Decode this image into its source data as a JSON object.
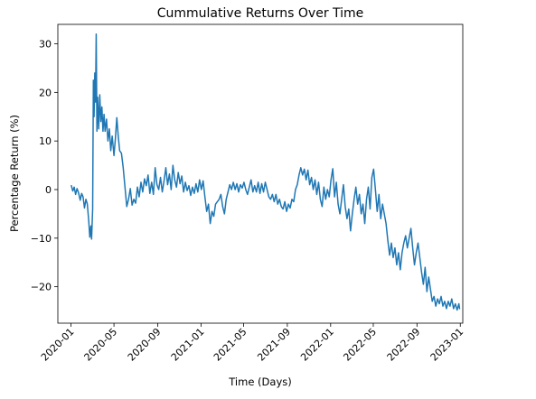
{
  "chart_data": {
    "type": "line",
    "title": "Cummulative Returns Over Time",
    "xlabel": "Time (Days)",
    "ylabel": "Percentage Return (%)",
    "xlim": [
      "2019-11-25",
      "2023-01-08"
    ],
    "ylim": [
      -27.5,
      34
    ],
    "xticks": [
      {
        "value": "2020-01-01",
        "label": "2020-01"
      },
      {
        "value": "2020-05-01",
        "label": "2020-05"
      },
      {
        "value": "2020-09-01",
        "label": "2020-09"
      },
      {
        "value": "2021-01-01",
        "label": "2021-01"
      },
      {
        "value": "2021-05-01",
        "label": "2021-05"
      },
      {
        "value": "2021-09-01",
        "label": "2021-09"
      },
      {
        "value": "2022-01-01",
        "label": "2022-01"
      },
      {
        "value": "2022-05-01",
        "label": "2022-05"
      },
      {
        "value": "2022-09-01",
        "label": "2022-09"
      },
      {
        "value": "2023-01-01",
        "label": "2023-01"
      }
    ],
    "yticks": [
      {
        "value": 30,
        "label": "30"
      },
      {
        "value": 20,
        "label": "20"
      },
      {
        "value": 10,
        "label": "10"
      },
      {
        "value": 0,
        "label": "0"
      },
      {
        "value": -10,
        "label": "−10"
      },
      {
        "value": -20,
        "label": "−20"
      }
    ],
    "grid": false,
    "legend": "none",
    "series": [
      {
        "color": "#1f77b4",
        "points": [
          [
            "2020-01-02",
            0.8
          ],
          [
            "2020-01-06",
            -0.3
          ],
          [
            "2020-01-10",
            0.5
          ],
          [
            "2020-01-14",
            -1.0
          ],
          [
            "2020-01-18",
            0.2
          ],
          [
            "2020-01-22",
            -0.6
          ],
          [
            "2020-01-27",
            -2.2
          ],
          [
            "2020-01-31",
            -0.8
          ],
          [
            "2020-02-04",
            -1.5
          ],
          [
            "2020-02-08",
            -3.8
          ],
          [
            "2020-02-12",
            -2.0
          ],
          [
            "2020-02-16",
            -3.0
          ],
          [
            "2020-02-20",
            -6.5
          ],
          [
            "2020-02-23",
            -9.8
          ],
          [
            "2020-02-26",
            -7.5
          ],
          [
            "2020-02-28",
            -10.2
          ],
          [
            "2020-03-02",
            -4.0
          ],
          [
            "2020-03-04",
            22.5
          ],
          [
            "2020-03-06",
            15.0
          ],
          [
            "2020-03-08",
            24.0
          ],
          [
            "2020-03-10",
            18.0
          ],
          [
            "2020-03-12",
            32.0
          ],
          [
            "2020-03-14",
            12.0
          ],
          [
            "2020-03-16",
            19.0
          ],
          [
            "2020-03-19",
            12.5
          ],
          [
            "2020-03-22",
            19.5
          ],
          [
            "2020-03-25",
            14.0
          ],
          [
            "2020-03-28",
            17.0
          ],
          [
            "2020-03-31",
            12.0
          ],
          [
            "2020-04-03",
            15.5
          ],
          [
            "2020-04-06",
            12.0
          ],
          [
            "2020-04-10",
            14.5
          ],
          [
            "2020-04-14",
            10.0
          ],
          [
            "2020-04-18",
            12.5
          ],
          [
            "2020-04-22",
            8.0
          ],
          [
            "2020-04-26",
            11.0
          ],
          [
            "2020-05-01",
            7.0
          ],
          [
            "2020-05-05",
            10.5
          ],
          [
            "2020-05-09",
            14.8
          ],
          [
            "2020-05-13",
            11.0
          ],
          [
            "2020-05-17",
            8.0
          ],
          [
            "2020-05-22",
            7.5
          ],
          [
            "2020-05-27",
            4.5
          ],
          [
            "2020-06-01",
            0.5
          ],
          [
            "2020-06-06",
            -3.5
          ],
          [
            "2020-06-11",
            -2.0
          ],
          [
            "2020-06-16",
            0.2
          ],
          [
            "2020-06-21",
            -3.2
          ],
          [
            "2020-06-26",
            -2.0
          ],
          [
            "2020-07-01",
            -2.8
          ],
          [
            "2020-07-06",
            0.5
          ],
          [
            "2020-07-11",
            -1.5
          ],
          [
            "2020-07-16",
            1.5
          ],
          [
            "2020-07-21",
            -0.5
          ],
          [
            "2020-07-26",
            2.2
          ],
          [
            "2020-07-31",
            0.8
          ],
          [
            "2020-08-05",
            3.0
          ],
          [
            "2020-08-10",
            -0.8
          ],
          [
            "2020-08-15",
            1.5
          ],
          [
            "2020-08-20",
            -1.0
          ],
          [
            "2020-08-25",
            4.5
          ],
          [
            "2020-08-30",
            1.0
          ],
          [
            "2020-09-04",
            0.0
          ],
          [
            "2020-09-09",
            2.5
          ],
          [
            "2020-09-14",
            -0.5
          ],
          [
            "2020-09-19",
            1.8
          ],
          [
            "2020-09-24",
            4.5
          ],
          [
            "2020-09-29",
            1.0
          ],
          [
            "2020-10-04",
            3.2
          ],
          [
            "2020-10-09",
            0.0
          ],
          [
            "2020-10-14",
            5.0
          ],
          [
            "2020-10-19",
            2.0
          ],
          [
            "2020-10-24",
            0.5
          ],
          [
            "2020-10-29",
            3.5
          ],
          [
            "2020-11-03",
            1.2
          ],
          [
            "2020-11-08",
            2.8
          ],
          [
            "2020-11-13",
            -0.5
          ],
          [
            "2020-11-18",
            1.5
          ],
          [
            "2020-11-23",
            -0.2
          ],
          [
            "2020-11-28",
            0.8
          ],
          [
            "2020-12-03",
            -1.2
          ],
          [
            "2020-12-08",
            0.5
          ],
          [
            "2020-12-13",
            -0.8
          ],
          [
            "2020-12-18",
            1.2
          ],
          [
            "2020-12-23",
            -0.5
          ],
          [
            "2020-12-28",
            2.0
          ],
          [
            "2021-01-02",
            0.0
          ],
          [
            "2021-01-07",
            1.8
          ],
          [
            "2021-01-12",
            -1.5
          ],
          [
            "2021-01-17",
            -4.5
          ],
          [
            "2021-01-22",
            -3.0
          ],
          [
            "2021-01-27",
            -7.0
          ],
          [
            "2021-02-01",
            -4.5
          ],
          [
            "2021-02-06",
            -5.5
          ],
          [
            "2021-02-11",
            -3.0
          ],
          [
            "2021-02-16",
            -2.5
          ],
          [
            "2021-02-21",
            -2.0
          ],
          [
            "2021-02-26",
            -1.0
          ],
          [
            "2021-03-03",
            -3.5
          ],
          [
            "2021-03-08",
            -5.0
          ],
          [
            "2021-03-13",
            -2.0
          ],
          [
            "2021-03-18",
            -0.5
          ],
          [
            "2021-03-23",
            1.0
          ],
          [
            "2021-03-28",
            0.0
          ],
          [
            "2021-04-02",
            1.5
          ],
          [
            "2021-04-07",
            0.0
          ],
          [
            "2021-04-12",
            1.2
          ],
          [
            "2021-04-17",
            -0.5
          ],
          [
            "2021-04-22",
            1.0
          ],
          [
            "2021-04-27",
            0.3
          ],
          [
            "2021-05-02",
            1.5
          ],
          [
            "2021-05-07",
            0.0
          ],
          [
            "2021-05-12",
            -1.0
          ],
          [
            "2021-05-17",
            0.5
          ],
          [
            "2021-05-22",
            2.0
          ],
          [
            "2021-05-27",
            -0.5
          ],
          [
            "2021-06-01",
            0.8
          ],
          [
            "2021-06-06",
            -0.5
          ],
          [
            "2021-06-11",
            1.5
          ],
          [
            "2021-06-16",
            -0.8
          ],
          [
            "2021-06-21",
            1.2
          ],
          [
            "2021-06-26",
            -0.5
          ],
          [
            "2021-07-01",
            1.5
          ],
          [
            "2021-07-06",
            0.0
          ],
          [
            "2021-07-11",
            -1.5
          ],
          [
            "2021-07-16",
            -2.0
          ],
          [
            "2021-07-21",
            -1.0
          ],
          [
            "2021-07-26",
            -2.5
          ],
          [
            "2021-07-31",
            -1.0
          ],
          [
            "2021-08-05",
            -3.0
          ],
          [
            "2021-08-10",
            -2.0
          ],
          [
            "2021-08-15",
            -3.5
          ],
          [
            "2021-08-20",
            -4.0
          ],
          [
            "2021-08-25",
            -2.5
          ],
          [
            "2021-08-30",
            -4.5
          ],
          [
            "2021-09-04",
            -3.0
          ],
          [
            "2021-09-09",
            -3.8
          ],
          [
            "2021-09-14",
            -2.0
          ],
          [
            "2021-09-19",
            -2.5
          ],
          [
            "2021-09-24",
            0.0
          ],
          [
            "2021-09-29",
            1.0
          ],
          [
            "2021-10-04",
            3.0
          ],
          [
            "2021-10-09",
            4.5
          ],
          [
            "2021-10-14",
            3.0
          ],
          [
            "2021-10-19",
            4.2
          ],
          [
            "2021-10-24",
            2.0
          ],
          [
            "2021-10-29",
            4.0
          ],
          [
            "2021-11-03",
            1.0
          ],
          [
            "2021-11-08",
            2.5
          ],
          [
            "2021-11-13",
            0.0
          ],
          [
            "2021-11-18",
            2.0
          ],
          [
            "2021-11-23",
            -1.0
          ],
          [
            "2021-11-28",
            1.5
          ],
          [
            "2021-12-03",
            -2.0
          ],
          [
            "2021-12-08",
            -3.5
          ],
          [
            "2021-12-13",
            0.5
          ],
          [
            "2021-12-18",
            -2.0
          ],
          [
            "2021-12-23",
            0.0
          ],
          [
            "2021-12-28",
            -1.5
          ],
          [
            "2022-01-02",
            2.0
          ],
          [
            "2022-01-07",
            4.3
          ],
          [
            "2022-01-12",
            -1.5
          ],
          [
            "2022-01-17",
            1.5
          ],
          [
            "2022-01-22",
            -3.0
          ],
          [
            "2022-01-27",
            -5.0
          ],
          [
            "2022-02-01",
            -2.0
          ],
          [
            "2022-02-06",
            1.0
          ],
          [
            "2022-02-11",
            -3.5
          ],
          [
            "2022-02-16",
            -6.0
          ],
          [
            "2022-02-21",
            -4.0
          ],
          [
            "2022-02-26",
            -8.5
          ],
          [
            "2022-03-03",
            -5.0
          ],
          [
            "2022-03-08",
            -2.0
          ],
          [
            "2022-03-13",
            0.5
          ],
          [
            "2022-03-18",
            -3.0
          ],
          [
            "2022-03-23",
            -1.0
          ],
          [
            "2022-03-28",
            -5.0
          ],
          [
            "2022-04-02",
            -3.0
          ],
          [
            "2022-04-07",
            -7.0
          ],
          [
            "2022-04-12",
            -2.0
          ],
          [
            "2022-04-17",
            0.5
          ],
          [
            "2022-04-22",
            -4.0
          ],
          [
            "2022-04-27",
            2.5
          ],
          [
            "2022-05-02",
            4.2
          ],
          [
            "2022-05-07",
            0.0
          ],
          [
            "2022-05-12",
            -4.5
          ],
          [
            "2022-05-17",
            -1.0
          ],
          [
            "2022-05-22",
            -6.0
          ],
          [
            "2022-05-27",
            -3.0
          ],
          [
            "2022-06-01",
            -5.0
          ],
          [
            "2022-06-06",
            -7.0
          ],
          [
            "2022-06-11",
            -10.5
          ],
          [
            "2022-06-16",
            -13.5
          ],
          [
            "2022-06-21",
            -11.0
          ],
          [
            "2022-06-26",
            -14.0
          ],
          [
            "2022-07-01",
            -12.0
          ],
          [
            "2022-07-06",
            -15.5
          ],
          [
            "2022-07-11",
            -13.0
          ],
          [
            "2022-07-16",
            -16.5
          ],
          [
            "2022-07-21",
            -13.0
          ],
          [
            "2022-07-26",
            -11.0
          ],
          [
            "2022-07-31",
            -9.5
          ],
          [
            "2022-08-05",
            -12.0
          ],
          [
            "2022-08-10",
            -10.0
          ],
          [
            "2022-08-15",
            -8.0
          ],
          [
            "2022-08-20",
            -12.0
          ],
          [
            "2022-08-25",
            -15.5
          ],
          [
            "2022-08-30",
            -13.0
          ],
          [
            "2022-09-04",
            -11.0
          ],
          [
            "2022-09-09",
            -14.0
          ],
          [
            "2022-09-14",
            -17.0
          ],
          [
            "2022-09-19",
            -19.5
          ],
          [
            "2022-09-24",
            -16.0
          ],
          [
            "2022-09-29",
            -21.0
          ],
          [
            "2022-10-04",
            -18.0
          ],
          [
            "2022-10-09",
            -20.5
          ],
          [
            "2022-10-14",
            -23.0
          ],
          [
            "2022-10-19",
            -22.0
          ],
          [
            "2022-10-24",
            -24.0
          ],
          [
            "2022-10-29",
            -22.5
          ],
          [
            "2022-11-03",
            -23.5
          ],
          [
            "2022-11-08",
            -22.0
          ],
          [
            "2022-11-13",
            -24.0
          ],
          [
            "2022-11-18",
            -23.0
          ],
          [
            "2022-11-23",
            -24.5
          ],
          [
            "2022-11-28",
            -23.0
          ],
          [
            "2022-12-03",
            -24.0
          ],
          [
            "2022-12-08",
            -22.5
          ],
          [
            "2022-12-13",
            -24.5
          ],
          [
            "2022-12-18",
            -23.5
          ],
          [
            "2022-12-23",
            -24.8
          ],
          [
            "2022-12-28",
            -23.5
          ],
          [
            "2022-12-30",
            -24.5
          ]
        ]
      }
    ]
  }
}
